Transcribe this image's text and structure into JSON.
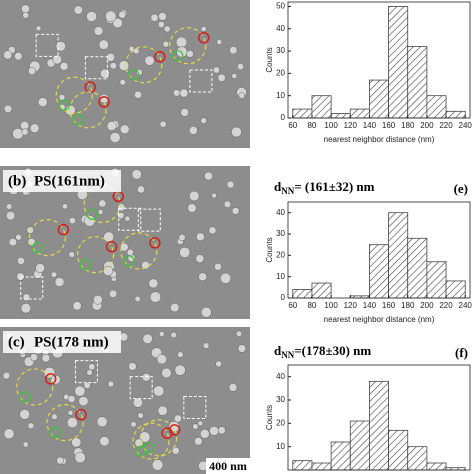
{
  "chart_data": [
    {
      "type": "histogram",
      "ylabel": "Counts",
      "xlabel": "nearest neighbor distance (nm)",
      "bins": [
        60,
        80,
        100,
        120,
        140,
        160,
        180,
        200,
        220,
        240
      ],
      "values": [
        4,
        10,
        2,
        4,
        17,
        50,
        32,
        10,
        3
      ],
      "xlim": [
        55,
        245
      ],
      "ylim": [
        0,
        52
      ],
      "xticks": [
        60,
        80,
        100,
        120,
        140,
        160,
        180,
        200,
        220,
        240
      ],
      "yticks": [
        0,
        10,
        20,
        30,
        40,
        50
      ],
      "color": "#444444"
    },
    {
      "type": "histogram",
      "ylabel": "Counts",
      "xlabel": "nearest neighbor distance (nm)",
      "annotation": {
        "symbol": "d",
        "subscript": "NN",
        "text": "= (161±32) nm"
      },
      "panel": "(e)",
      "bins": [
        60,
        80,
        100,
        120,
        140,
        160,
        180,
        200,
        220,
        240
      ],
      "values": [
        4,
        7,
        0,
        1,
        25,
        40,
        28,
        17,
        8
      ],
      "xlim": [
        55,
        245
      ],
      "ylim": [
        0,
        45
      ],
      "xticks": [
        60,
        80,
        100,
        120,
        140,
        160,
        180,
        200,
        220,
        240
      ],
      "yticks": [
        0,
        10,
        20,
        30,
        40
      ],
      "color": "#444444"
    },
    {
      "type": "histogram",
      "ylabel": "Counts",
      "annotation": {
        "symbol": "d",
        "subscript": "NN",
        "text": "=(178±30) nm"
      },
      "panel": "(f)",
      "bins": [
        60,
        80,
        100,
        120,
        140,
        160,
        180,
        200,
        220,
        240
      ],
      "values": [
        4,
        3,
        12,
        21,
        38,
        17,
        10,
        3,
        1
      ],
      "xlim": [
        55,
        245
      ],
      "ylim": [
        0,
        45
      ],
      "yticks": [
        10,
        20,
        30,
        40
      ],
      "color": "#444444"
    }
  ],
  "images": [
    {
      "label": "",
      "title": ""
    },
    {
      "label": "(b)",
      "title": "PS(161nm)"
    },
    {
      "label": "(c)",
      "title": "PS(178 nm)",
      "scale": "400 nm"
    }
  ]
}
